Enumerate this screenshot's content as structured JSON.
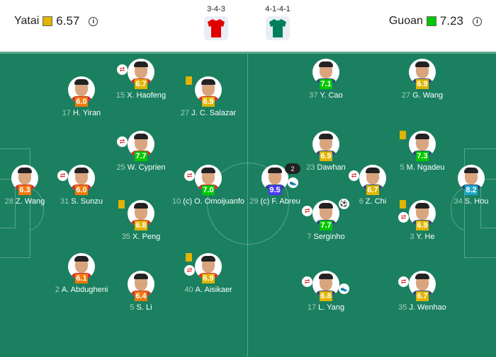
{
  "home": {
    "name": "Yatai",
    "rating": "6.57",
    "rating_color": "#e0b400",
    "formation": "3-4-3",
    "kit_color": "#e00000"
  },
  "away": {
    "name": "Guoan",
    "rating": "7.23",
    "rating_color": "#00c800",
    "formation": "4-1-4-1",
    "kit_color": "#00805a"
  },
  "info_icon": "info-icon",
  "rating_colors": {
    "orange": "#f0780a",
    "yellow": "#e0b400",
    "green": "#00c800",
    "purple": "#4a3cf0",
    "cyan": "#1aa7c8"
  },
  "players": [
    {
      "number": "28",
      "name": "Z. Wang",
      "rating": "6.3",
      "tier": "orange",
      "events": []
    },
    {
      "number": "31",
      "name": "S. Sunzu",
      "rating": "6.0",
      "tier": "orange",
      "events": [
        "substitution"
      ]
    },
    {
      "number": "17",
      "name": "H. Yiran",
      "rating": "6.0",
      "tier": "orange",
      "events": []
    },
    {
      "number": "15",
      "name": "X. Haofeng",
      "rating": "6.7",
      "tier": "yellow",
      "events": [
        "substitution"
      ]
    },
    {
      "number": "25",
      "name": "W. Cyprien",
      "rating": "7.7",
      "tier": "green",
      "events": [
        "substitution"
      ]
    },
    {
      "number": "35",
      "name": "X. Peng",
      "rating": "6.8",
      "tier": "yellow",
      "events": [
        "yellow-card"
      ]
    },
    {
      "number": "27",
      "name": "J. C. Salazar",
      "rating": "6.9",
      "tier": "yellow",
      "events": [
        "yellow-card"
      ]
    },
    {
      "number": "10",
      "name": "(c) O. Omoijuanfo",
      "rating": "7.0",
      "tier": "green",
      "events": [
        "substitution"
      ]
    },
    {
      "number": "2",
      "name": "A. Abdugheni",
      "rating": "6.1",
      "tier": "orange",
      "events": []
    },
    {
      "number": "5",
      "name": "S. Li",
      "rating": "6.4",
      "tier": "orange",
      "events": []
    },
    {
      "number": "40",
      "name": "A. Aisikaer",
      "rating": "6.9",
      "tier": "yellow",
      "events": [
        "yellow-card",
        "substitution"
      ]
    },
    {
      "number": "37",
      "name": "Y. Cao",
      "rating": "7.1",
      "tier": "green",
      "events": []
    },
    {
      "number": "27",
      "name": "G. Wang",
      "rating": "6.9",
      "tier": "yellow",
      "events": []
    },
    {
      "number": "23",
      "name": "Dawhan",
      "rating": "6.9",
      "tier": "yellow",
      "events": []
    },
    {
      "number": "5",
      "name": "M. Ngadeu",
      "rating": "7.3",
      "tier": "green",
      "events": [
        "yellow-card"
      ]
    },
    {
      "number": "29",
      "name": "(c) F. Abreu",
      "rating": "9.5",
      "tier": "purple",
      "events": [
        "goals",
        "assist"
      ],
      "goals": "2"
    },
    {
      "number": "6",
      "name": "Z. Chi",
      "rating": "6.7",
      "tier": "yellow",
      "events": [
        "substitution"
      ]
    },
    {
      "number": "34",
      "name": "S. Hou",
      "rating": "8.2",
      "tier": "cyan",
      "events": []
    },
    {
      "number": "7",
      "name": "Serginho",
      "rating": "7.7",
      "tier": "green",
      "events": [
        "goal",
        "substitution"
      ]
    },
    {
      "number": "3",
      "name": "Y. He",
      "rating": "6.9",
      "tier": "yellow",
      "events": [
        "yellow-card",
        "substitution"
      ]
    },
    {
      "number": "17",
      "name": "L. Yang",
      "rating": "6.8",
      "tier": "yellow",
      "events": [
        "substitution",
        "assist"
      ]
    },
    {
      "number": "35",
      "name": "J. Wenhao",
      "rating": "6.7",
      "tier": "yellow",
      "events": [
        "substitution"
      ]
    }
  ]
}
